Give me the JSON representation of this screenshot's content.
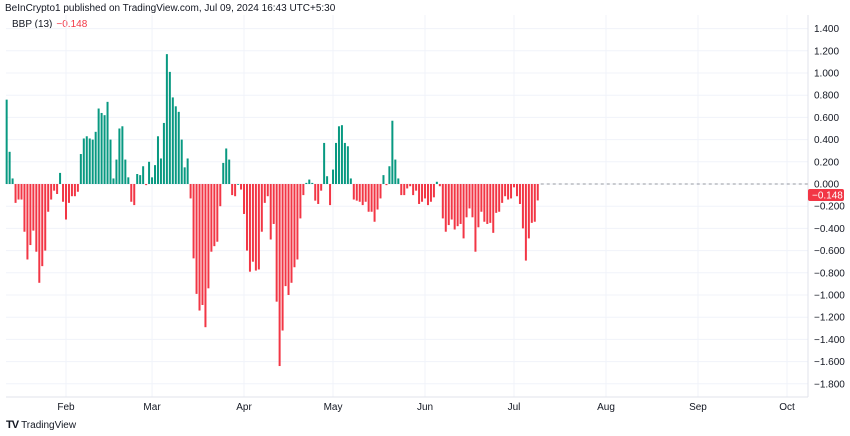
{
  "header": {
    "published": "BeInCrypto1 published on TradingView.com, Jul 09, 2024 16:43 UTC+5:30"
  },
  "legend": {
    "name": "BBP (13)",
    "value": "−0.148"
  },
  "branding": {
    "logo_text": "TradingView",
    "logo_icon": "tradingview-logo-icon"
  },
  "colors": {
    "positive": "#089981",
    "negative": "#f23645",
    "grid": "#f0f3fa",
    "zero_line": "#9598a1"
  },
  "chart_data": {
    "type": "bar",
    "title": "",
    "xlabel": "",
    "ylabel": "",
    "x_first": "2024-01-12",
    "x_last": "2024-07-09",
    "interval": "1D",
    "ylim": [
      -1.9,
      1.5
    ],
    "grid": true,
    "x_tick_labels": [
      "Feb",
      "Mar",
      "Apr",
      "May",
      "Jun",
      "Jul",
      "Aug",
      "Sep",
      "Oct"
    ],
    "x_tick_dates": [
      "2024-02-01",
      "2024-03-01",
      "2024-04-01",
      "2024-05-01",
      "2024-06-01",
      "2024-07-01",
      "2024-08-01",
      "2024-09-01",
      "2024-10-01"
    ],
    "y_tick_labels": [
      "1.400",
      "1.200",
      "1.000",
      "0.800",
      "0.600",
      "0.400",
      "0.200",
      "0.000",
      "−0.200",
      "−0.400",
      "−0.600",
      "−0.800",
      "−1.000",
      "−1.200",
      "−1.400",
      "−1.600",
      "−1.800"
    ],
    "y_ticks": [
      1.4,
      1.2,
      1.0,
      0.8,
      0.6,
      0.4,
      0.2,
      0,
      -0.2,
      -0.4,
      -0.6,
      -0.8,
      -1.0,
      -1.2,
      -1.4,
      -1.6,
      -1.8
    ],
    "last_value_label": "−0.148",
    "last_value": -0.148,
    "values": [
      0.76,
      0.29,
      0.05,
      -0.17,
      -0.14,
      -0.14,
      -0.43,
      -0.68,
      -0.55,
      -0.42,
      -0.61,
      -0.89,
      -0.74,
      -0.6,
      -0.25,
      -0.14,
      -0.06,
      -0.09,
      0.1,
      -0.16,
      -0.32,
      -0.17,
      -0.11,
      -0.11,
      -0.07,
      0.27,
      0.41,
      0.43,
      0.41,
      0.4,
      0.47,
      0.68,
      0.64,
      0.62,
      0.74,
      0.4,
      0.05,
      0.22,
      0.5,
      0.52,
      0.22,
      0.06,
      -0.16,
      -0.19,
      0.09,
      0.08,
      0.16,
      -0.01,
      0.2,
      0.06,
      0.17,
      0.43,
      0.23,
      0.55,
      1.17,
      1.01,
      0.78,
      0.7,
      0.65,
      0.4,
      0.15,
      0.23,
      -0.13,
      -0.67,
      -0.99,
      -1.14,
      -1.09,
      -1.29,
      -0.94,
      -0.61,
      -0.56,
      -0.52,
      -0.2,
      0.19,
      0.32,
      0.22,
      -0.1,
      -0.11,
      0.0,
      -0.05,
      -0.27,
      -0.6,
      -0.79,
      -0.7,
      -0.78,
      -0.77,
      -0.43,
      -0.17,
      -0.11,
      -0.5,
      -0.36,
      -1.06,
      -1.64,
      -1.32,
      -0.92,
      -1.0,
      -0.89,
      -0.75,
      -0.68,
      -0.31,
      -0.1,
      0.01,
      0.04,
      0.01,
      -0.15,
      -0.18,
      -0.06,
      0.37,
      0.07,
      -0.19,
      0.13,
      0.37,
      0.52,
      0.53,
      0.37,
      0.34,
      0.05,
      -0.14,
      -0.15,
      -0.16,
      -0.19,
      -0.16,
      -0.25,
      -0.25,
      -0.34,
      -0.23,
      -0.13,
      0.08,
      -0.01,
      0.16,
      0.57,
      0.22,
      0.05,
      -0.1,
      -0.1,
      -0.04,
      -0.02,
      -0.1,
      -0.06,
      -0.18,
      -0.16,
      -0.13,
      -0.19,
      -0.16,
      -0.12,
      0.02,
      -0.02,
      -0.31,
      -0.43,
      -0.37,
      -0.32,
      -0.41,
      -0.38,
      -0.36,
      -0.49,
      -0.3,
      -0.22,
      -0.3,
      -0.61,
      -0.39,
      -0.25,
      -0.34,
      -0.36,
      -0.35,
      -0.44,
      -0.26,
      -0.25,
      -0.17,
      -0.11,
      -0.14,
      -0.13,
      -0.03,
      -0.11,
      -0.18,
      -0.4,
      -0.69,
      -0.49,
      -0.35,
      -0.34,
      -0.148
    ]
  }
}
